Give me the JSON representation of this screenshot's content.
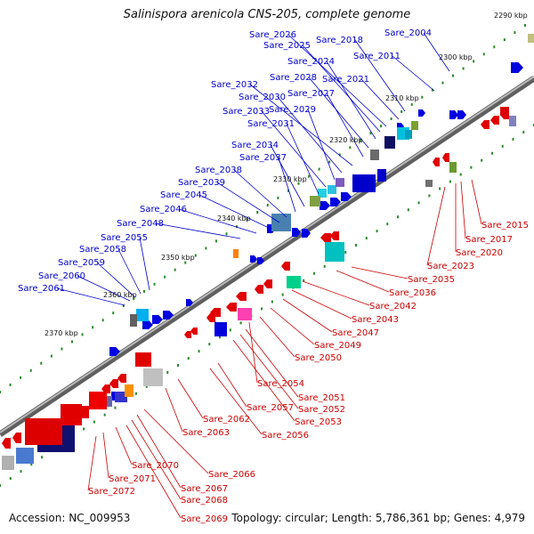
{
  "title": "Salinispora arenicola CNS-205, complete genome",
  "accession": "Accession: NC_009953",
  "summary": "Topology: circular; Length: 5,786,361 bp; Genes: 4,979",
  "colors": {
    "backbone": "#8a8a8a",
    "top_strand": "#0000e0",
    "bottom_strand": "#e00000",
    "top_label": "#0000cc",
    "bottom_label": "#cc0000",
    "tick": "#2a8a2a"
  },
  "kbp_ticks": [
    "2290 kbp",
    "2300 kbp",
    "2310 kbp",
    "2320 kbp",
    "2330 kbp",
    "2340 kbp",
    "2350 kbp",
    "2360 kbp",
    "2370 kbp"
  ],
  "top_labels": [
    "Sare_2004",
    "Sare_2011",
    "Sare_2018",
    "Sare_2021",
    "Sare_2026",
    "Sare_2025",
    "Sare_2024",
    "Sare_2028",
    "Sare_2027",
    "Sare_2032",
    "Sare_2030",
    "Sare_2029",
    "Sare_2033",
    "Sare_2031",
    "Sare_2034",
    "Sare_2037",
    "Sare_2038",
    "Sare_2039",
    "Sare_2045",
    "Sare_2046",
    "Sare_2048",
    "Sare_2055",
    "Sare_2058",
    "Sare_2059",
    "Sare_2060",
    "Sare_2061"
  ],
  "bottom_labels": [
    "Sare_2015",
    "Sare_2017",
    "Sare_2020",
    "Sare_2023",
    "Sare_2035",
    "Sare_2036",
    "Sare_2042",
    "Sare_2043",
    "Sare_2047",
    "Sare_2049",
    "Sare_2050",
    "Sare_2054",
    "Sare_2051",
    "Sare_2052",
    "Sare_2053",
    "Sare_2057",
    "Sare_2056",
    "Sare_2062",
    "Sare_2063",
    "Sare_2066",
    "Sare_2067",
    "Sare_2068",
    "Sare_2069",
    "Sare_2070",
    "Sare_2071",
    "Sare_2072"
  ]
}
